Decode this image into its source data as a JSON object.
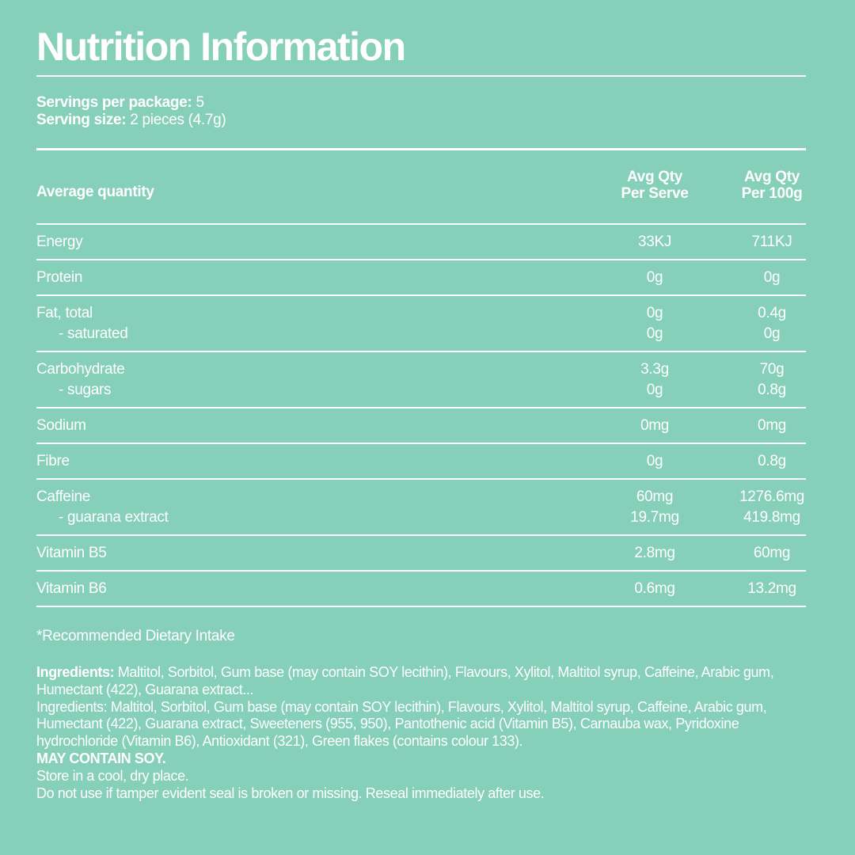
{
  "title": "Nutrition Information",
  "servings": [
    {
      "label": "Servings per package:",
      "value": "5"
    },
    {
      "label": "Serving size:",
      "value": "2 pieces (4.7g)"
    }
  ],
  "table": {
    "header": {
      "label": "Average quantity",
      "columns": [
        [
          "Avg Qty",
          "Per Serve"
        ],
        [
          "Avg Qty",
          "Per 100g"
        ]
      ]
    },
    "groups": [
      [
        [
          "Energy",
          "33KJ",
          "711KJ"
        ]
      ],
      [
        [
          "Protein",
          "0g",
          "0g"
        ]
      ],
      [
        [
          "Fat, total",
          "0g",
          "0.4g"
        ],
        [
          "- saturated",
          "0g",
          "0g"
        ]
      ],
      [
        [
          "Carbohydrate",
          "3.3g",
          "70g"
        ],
        [
          "- sugars",
          "0g",
          "0.8g"
        ]
      ],
      [
        [
          "Sodium",
          "0mg",
          "0mg"
        ]
      ],
      [
        [
          "Fibre",
          "0g",
          "0.8g"
        ]
      ],
      [
        [
          "Caffeine",
          "60mg",
          "1276.6mg"
        ],
        [
          "- guarana extract",
          "19.7mg",
          "419.8mg"
        ]
      ],
      [
        [
          "Vitamin B5",
          "2.8mg",
          "60mg"
        ]
      ],
      [
        [
          "Vitamin B6",
          "0.6mg",
          "13.2mg"
        ]
      ]
    ]
  },
  "footnote": "*Recommended Dietary Intake",
  "ingredients": {
    "label": "Ingredients:",
    "text": "Maltitol, Sorbitol, Gum base (may contain SOY lecithin), Flavours, Xylitol, Maltitol syrup, Caffeine, Arabic gum, Humectant (422), Guarana extract...",
    "full": "Ingredients: Maltitol, Sorbitol, Gum base (may contain SOY lecithin), Flavours, Xylitol, Maltitol syrup, Caffeine, Arabic gum, Humectant (422), Guarana extract, Sweeteners (955, 950), Pantothenic acid (Vitamin B5), Carnauba wax, Pyridoxine hydrochloride (Vitamin B6), Antioxidant (321), Green flakes (contains colour 133).",
    "allergen": "MAY CONTAIN SOY.",
    "storage": "Store in a cool, dry place.",
    "warning": "Do not use if tamper evident seal is broken or missing. Reseal immediately after use."
  }
}
